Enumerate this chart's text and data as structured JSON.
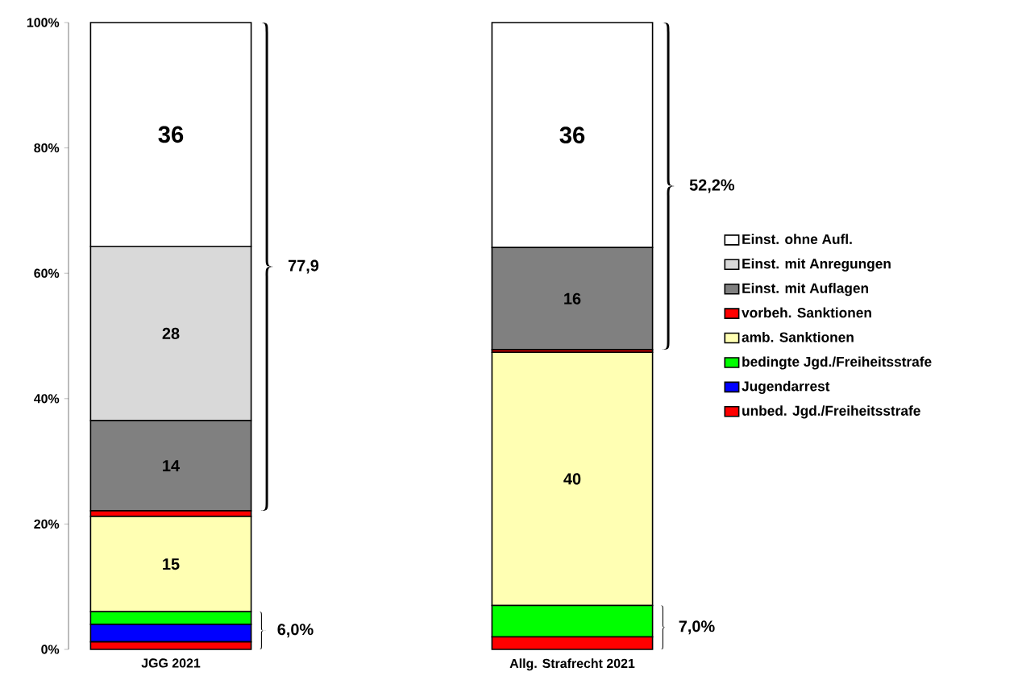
{
  "chart_data": {
    "type": "bar",
    "stacked": true,
    "categories": [
      "JGG 2021",
      "Allg. Strafrecht 2021"
    ],
    "ylim": [
      0,
      100
    ],
    "yticks": [
      {
        "value": 0,
        "label": "0%"
      },
      {
        "value": 20,
        "label": "20%"
      },
      {
        "value": 40,
        "label": "40%"
      },
      {
        "value": 60,
        "label": "60%"
      },
      {
        "value": 80,
        "label": "80%"
      },
      {
        "value": 100,
        "label": "100%"
      }
    ],
    "legend": "right",
    "grid": false,
    "series": [
      {
        "name": "unbed. Jgd./Freiheitsstrafe",
        "color": "#ff0000",
        "values": [
          1.2,
          2.0
        ]
      },
      {
        "name": "Jugendarrest",
        "color": "#0000ff",
        "values": [
          2.8,
          0
        ]
      },
      {
        "name": "bedingte Jgd./Freiheitsstrafe",
        "color": "#00ff00",
        "values": [
          2.0,
          5.0
        ]
      },
      {
        "name": "amb. Sanktionen",
        "color": "#ffffb3",
        "values": [
          15.2,
          40.4
        ],
        "value_labels": [
          "15",
          "40"
        ]
      },
      {
        "name": "vorbeh. Sanktionen",
        "color": "#ff0000",
        "values": [
          0.9,
          0.4
        ]
      },
      {
        "name": "Einst. mit Auflagen",
        "color": "#808080",
        "values": [
          14.4,
          16.3
        ],
        "value_labels": [
          "14",
          "16"
        ]
      },
      {
        "name": "Einst. mit Anregungen",
        "color": "#d9d9d9",
        "values": [
          27.8,
          0
        ],
        "value_labels": [
          "28",
          null
        ]
      },
      {
        "name": "Einst. ohne Aufl.",
        "color": "#ffffff",
        "values": [
          35.7,
          35.9
        ],
        "value_labels": [
          "36",
          "36"
        ]
      }
    ],
    "annotations": [
      "77,9",
      "6,0%",
      "52,2%",
      "7,0%"
    ]
  }
}
